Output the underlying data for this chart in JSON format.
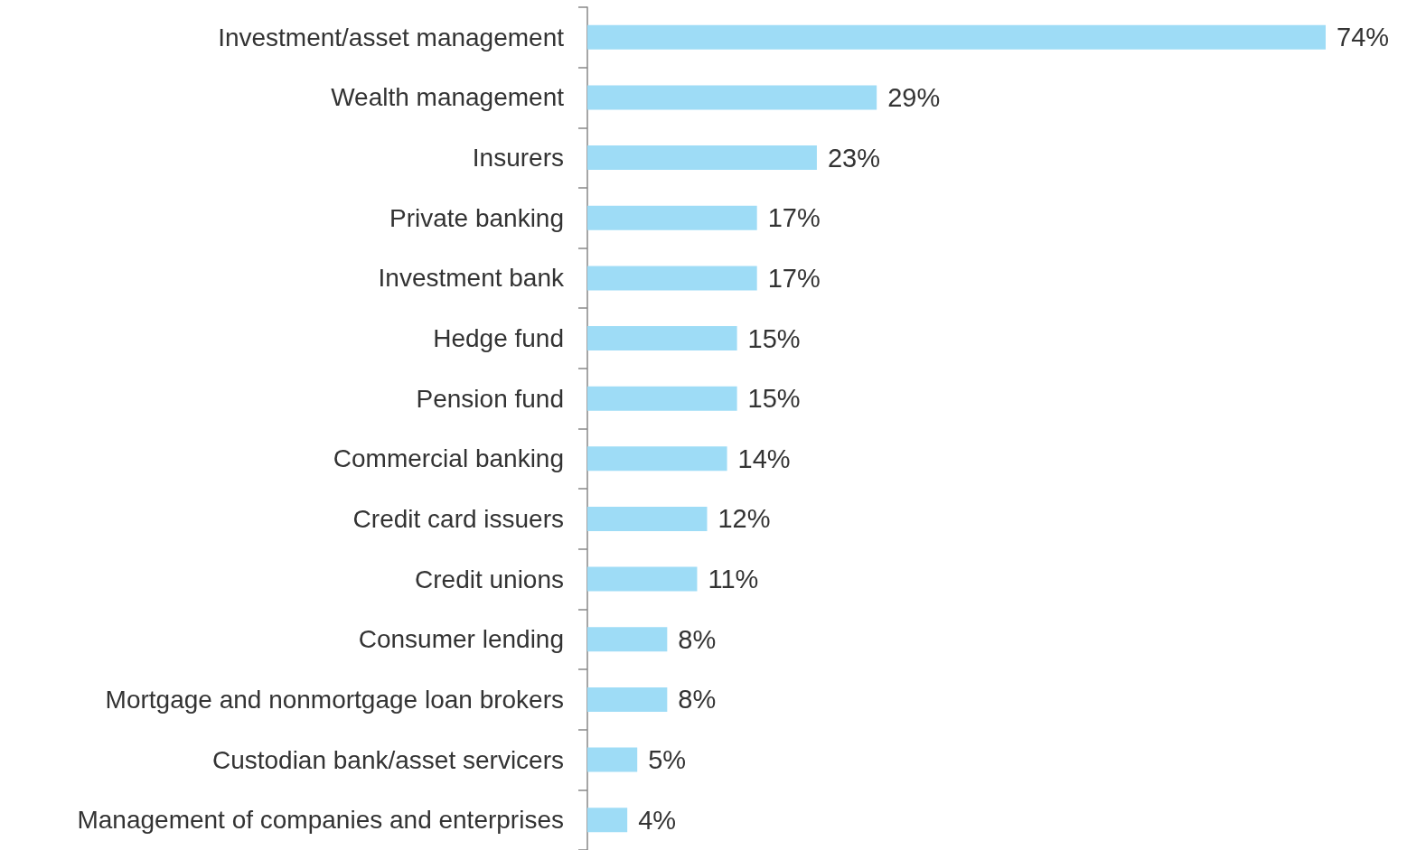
{
  "chart_data": {
    "type": "bar",
    "orientation": "horizontal",
    "categories": [
      "Investment/asset management",
      "Wealth management",
      "Insurers",
      "Private banking",
      "Investment bank",
      "Hedge fund",
      "Pension fund",
      "Commercial banking",
      "Credit card issuers",
      "Credit unions",
      "Consumer lending",
      "Mortgage and nonmortgage loan brokers",
      "Custodian bank/asset servicers",
      "Management of companies and enterprises"
    ],
    "values": [
      74,
      29,
      23,
      17,
      17,
      15,
      15,
      14,
      12,
      11,
      8,
      8,
      5,
      4
    ],
    "value_labels": [
      "74%",
      "29%",
      "23%",
      "17%",
      "17%",
      "15%",
      "15%",
      "14%",
      "12%",
      "11%",
      "8%",
      "8%",
      "5%",
      "4%"
    ],
    "color": "#9edcf6"
  }
}
